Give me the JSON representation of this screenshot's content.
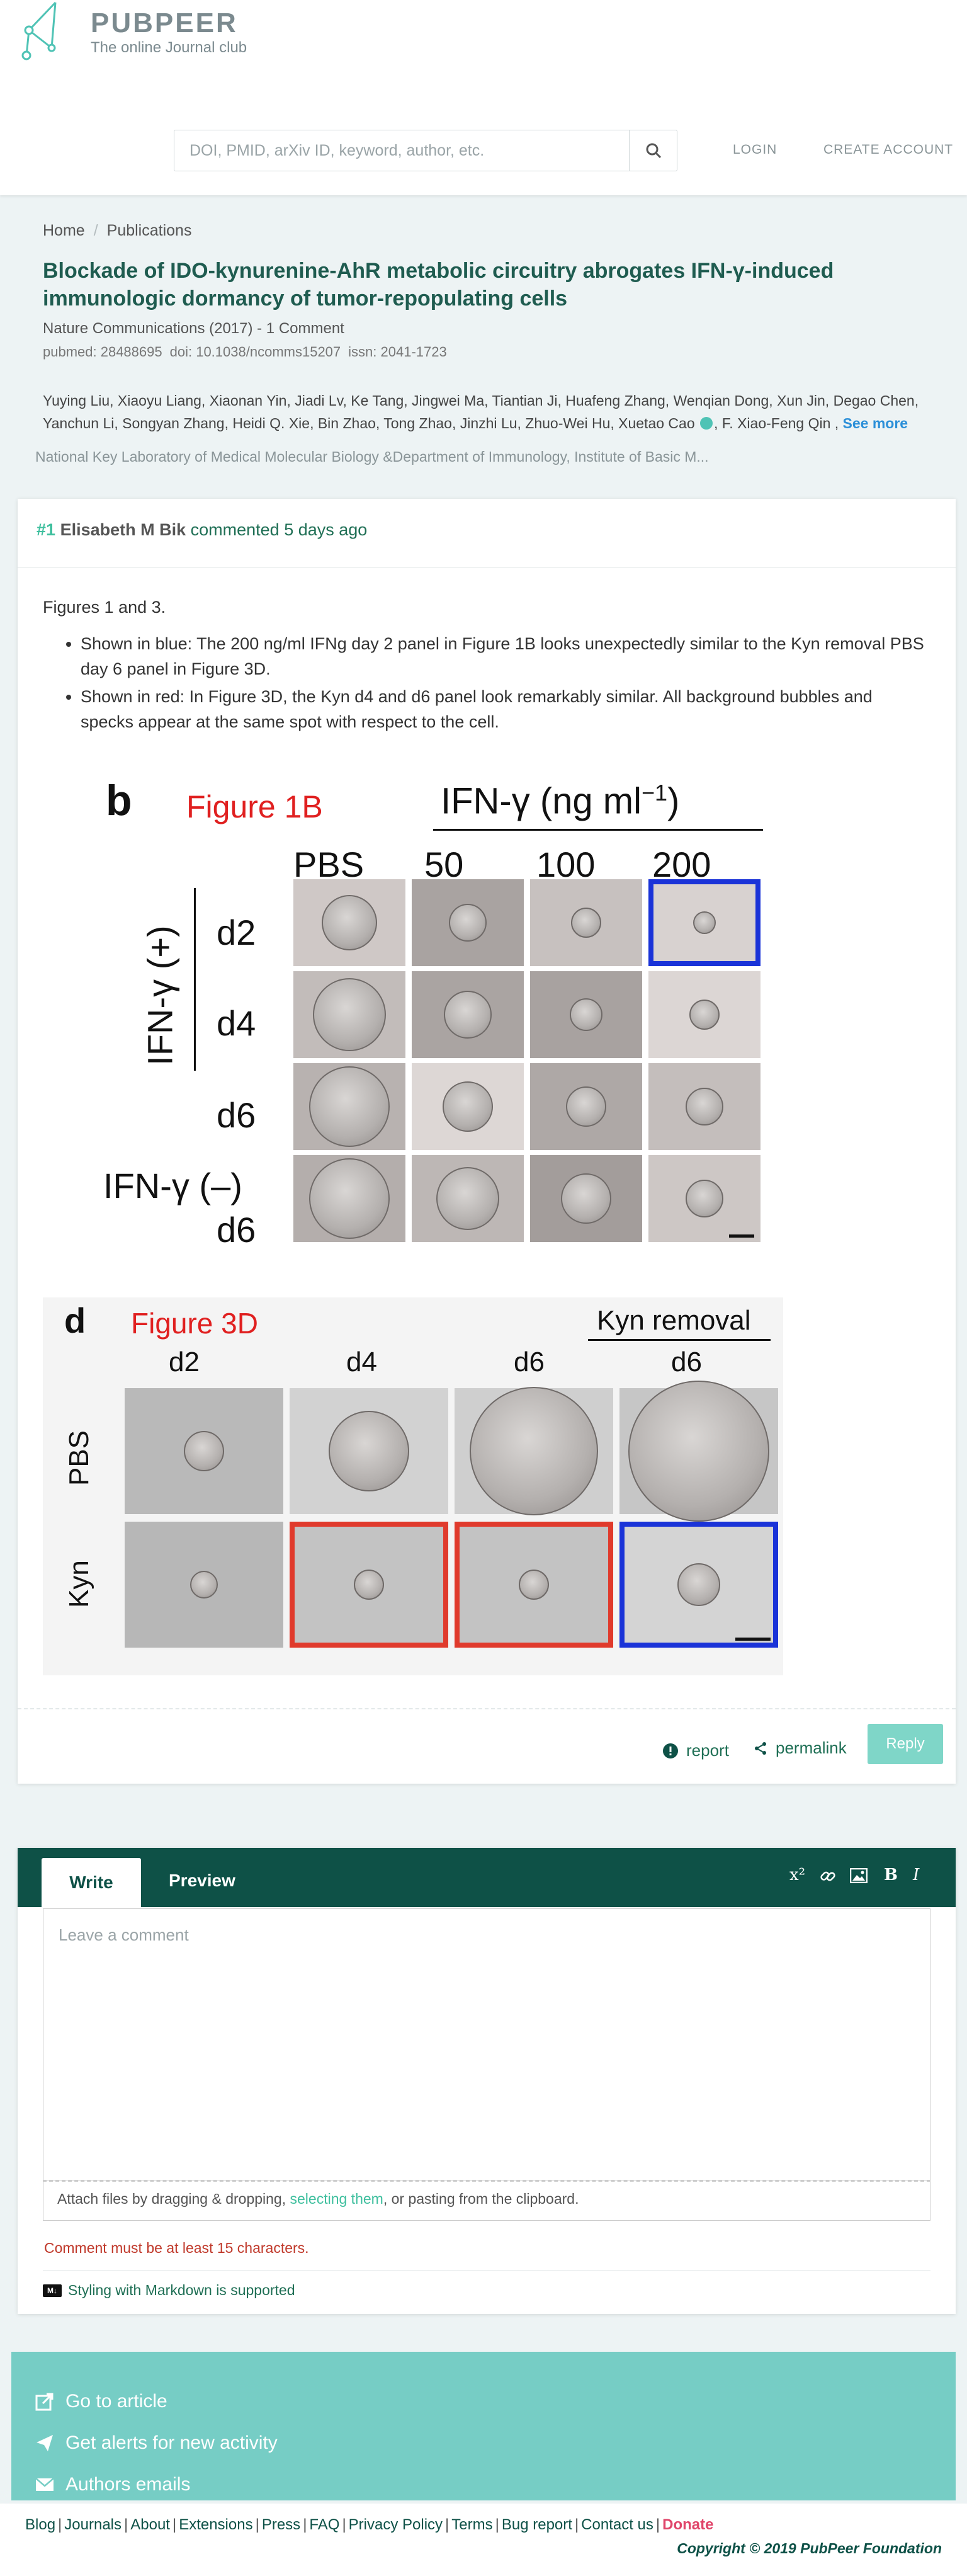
{
  "header": {
    "logo_title": "PUBPEER",
    "logo_subtitle": "The online Journal club",
    "search_placeholder": "DOI, PMID, arXiv ID, keyword, author, etc.",
    "login": "LOGIN",
    "create_account": "CREATE ACCOUNT"
  },
  "breadcrumb": {
    "home": "Home",
    "separator": "/",
    "publications": "Publications"
  },
  "publication": {
    "title": "Blockade of IDO-kynurenine-AhR metabolic circuitry abrogates IFN-γ-induced immunologic dormancy of tumor-repopulating cells",
    "journal": "Nature Communications (2017) - 1 Comment",
    "pubmed": "pubmed: 28488695",
    "doi": "doi: 10.1038/ncomms15207",
    "issn": "issn: 2041-1723",
    "authors_1": "Yuying Liu, Xiaoyu Liang, Xiaonan Yin, Jiadi Lv, Ke Tang, Jingwei Ma, Tiantian Ji, Huafeng Zhang, Wenqian Dong, Xun Jin, Degao Chen,",
    "authors_2": "Yanchun Li, Songyan Zhang, Heidi Q. Xie, Bin Zhao, Tong Zhao, Jinzhi Lu, Zhuo-Wei Hu, Xuetao Cao",
    "authors_3": ", F. Xiao-Feng Qin ,",
    "see_more": "See more",
    "affiliation": "National Key Laboratory of Medical Molecular Biology &Department of Immunology, Institute of Basic M..."
  },
  "comment": {
    "number": "#1",
    "author": "Elisabeth M Bik",
    "meta": "commented 5 days ago",
    "intro": "Figures 1 and 3.",
    "bullet_1": "Shown in blue: The 200 ng/ml IFNg day 2 panel in Figure 1B looks unexpectedly similar to the Kyn removal PBS day 6 panel in Figure 3D.",
    "bullet_2": "Shown in red: In Figure 3D, the Kyn d4 and d6 panel look remarkably similar. All background bubbles and specks appear at the same spot with respect to the cell.",
    "report": "report",
    "permalink": "permalink",
    "reply": "Reply"
  },
  "figure_1b": {
    "letter": "b",
    "label": "Figure 1B",
    "header": "IFN-γ (ng ml",
    "header_sup": "−1",
    "header_close": ")",
    "cols": [
      "PBS",
      "50",
      "100",
      "200"
    ],
    "group_label": "IFN-γ (+)",
    "rows": [
      "d2",
      "d4",
      "d6"
    ],
    "neg_label": "IFN-γ (–)",
    "neg_row": "d6"
  },
  "figure_3d": {
    "letter": "d",
    "label": "Figure 3D",
    "kyn_removal": "Kyn removal",
    "cols": [
      "d2",
      "d4",
      "d6",
      "d6"
    ],
    "rows": [
      "PBS",
      "Kyn"
    ]
  },
  "editor": {
    "tab_write": "Write",
    "tab_preview": "Preview",
    "tool_superscript": "x²",
    "tool_bold": "B",
    "tool_italic": "I",
    "placeholder": "Leave a comment",
    "attach_1": "Attach files by dragging & dropping, ",
    "attach_link": "selecting them",
    "attach_2": ", or pasting from the clipboard.",
    "error": "Comment must be at least 15 characters.",
    "md_badge": "M↓",
    "markdown": "Styling with Markdown is supported"
  },
  "bottom_links": {
    "go_to_article": "Go to article",
    "get_alerts": "Get alerts for new activity",
    "authors_emails": "Authors emails"
  },
  "footer": {
    "links": [
      "Blog",
      "Journals",
      "About",
      "Extensions",
      "Press",
      "FAQ",
      "Privacy Policy",
      "Terms",
      "Bug report",
      "Contact us"
    ],
    "donate": "Donate",
    "copyright": "Copyright © 2019 PubPeer Foundation"
  },
  "colors": {
    "brand_dark": "#0e5147",
    "accent": "#3fbf9e",
    "highlight_blue": "#1a33d8",
    "highlight_red": "#e03a2c"
  }
}
